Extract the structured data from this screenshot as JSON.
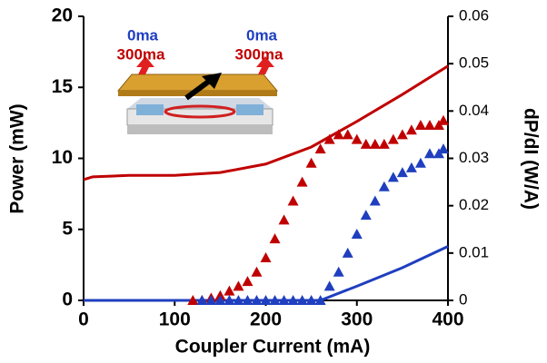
{
  "chart_data": {
    "type": "line",
    "xlabel": "Coupler Current (mA)",
    "ylabel": "Power (mW)",
    "y2label": "dP/dI (W/A)",
    "xlim": [
      0,
      400
    ],
    "xticks": [
      0,
      100,
      200,
      300,
      400
    ],
    "ylim": [
      0,
      20
    ],
    "yticks": [
      0,
      5,
      10,
      15,
      20
    ],
    "y2lim": [
      0,
      0.06
    ],
    "y2ticks": [
      0,
      0.01,
      0.02,
      0.03,
      0.04,
      0.05,
      0.06
    ],
    "annotations": [
      "0ma",
      "300ma",
      "0ma",
      "300ma"
    ],
    "series": [
      {
        "color": "#c00000",
        "x": [
          0,
          10,
          50,
          100,
          150,
          200,
          250,
          300,
          350,
          400
        ],
        "values": [
          8.5,
          8.7,
          8.8,
          8.8,
          9.0,
          9.6,
          10.8,
          12.6,
          14.5,
          16.5
        ]
      },
      {
        "color": "#1f3fbf",
        "x": [
          0,
          250,
          260,
          300,
          350,
          400
        ],
        "values": [
          0,
          0,
          0,
          1.0,
          2.3,
          3.8
        ]
      },
      {
        "color": "#c00000",
        "axis": "y2",
        "marker": "triangle",
        "x": [
          120,
          130,
          140,
          150,
          160,
          170,
          180,
          190,
          200,
          210,
          220,
          230,
          240,
          250,
          260,
          270,
          280,
          290,
          300,
          310,
          320,
          330,
          340,
          350,
          360,
          370,
          380,
          390,
          395
        ],
        "values": [
          0,
          0,
          0.0005,
          0.001,
          0.002,
          0.003,
          0.004,
          0.006,
          0.009,
          0.013,
          0.017,
          0.021,
          0.025,
          0.029,
          0.032,
          0.034,
          0.035,
          0.035,
          0.034,
          0.033,
          0.033,
          0.033,
          0.034,
          0.035,
          0.036,
          0.037,
          0.037,
          0.037,
          0.038
        ]
      },
      {
        "color": "#1f3fbf",
        "axis": "y2",
        "marker": "triangle",
        "x": [
          130,
          140,
          150,
          160,
          170,
          180,
          190,
          200,
          210,
          220,
          230,
          240,
          250,
          260,
          270,
          280,
          290,
          300,
          310,
          320,
          330,
          340,
          350,
          360,
          370,
          380,
          390,
          395
        ],
        "values": [
          0,
          0,
          0,
          0,
          0,
          0,
          0,
          0,
          0,
          0,
          0,
          0,
          0,
          0,
          0.003,
          0.006,
          0.01,
          0.014,
          0.018,
          0.021,
          0.024,
          0.026,
          0.027,
          0.028,
          0.029,
          0.031,
          0.031,
          0.032
        ]
      }
    ]
  }
}
